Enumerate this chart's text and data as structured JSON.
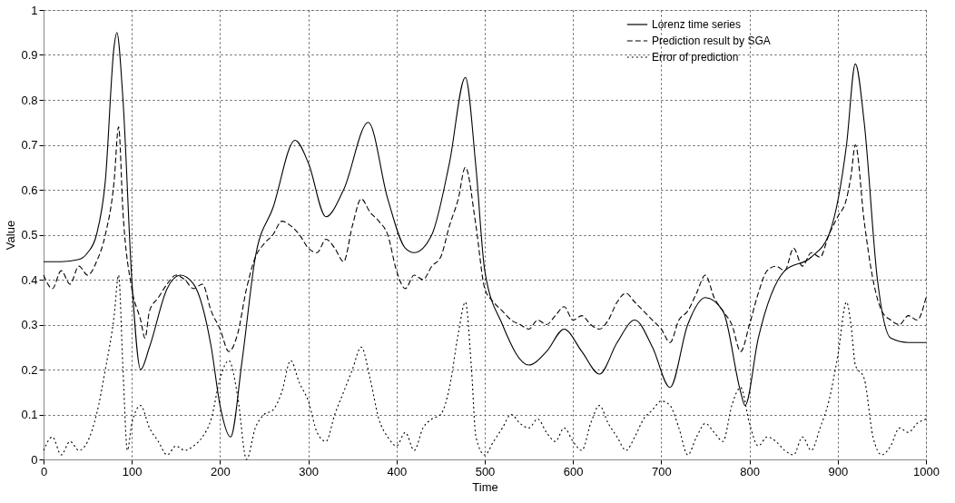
{
  "chart_data": {
    "type": "line",
    "xlabel": "Time",
    "ylabel": "Value",
    "xlim": [
      0,
      1000
    ],
    "xticks": [
      0,
      100,
      200,
      300,
      400,
      500,
      600,
      700,
      800,
      900,
      1000
    ],
    "ylim": [
      0,
      1
    ],
    "yticks": [
      0,
      0.1,
      0.2,
      0.3,
      0.4,
      0.5,
      0.6,
      0.7,
      0.8,
      0.9,
      1
    ],
    "grid": true,
    "legend": "top right",
    "series": [
      {
        "name": "Lorenz time series",
        "color": "#000000",
        "line_style": "solid",
        "x": [
          0,
          20,
          40,
          50,
          60,
          70,
          80,
          83,
          90,
          100,
          110,
          120,
          140,
          155,
          170,
          190,
          200,
          212,
          225,
          240,
          260,
          285,
          300,
          320,
          340,
          368,
          390,
          410,
          420,
          440,
          460,
          478,
          490,
          500,
          520,
          550,
          570,
          590,
          610,
          630,
          650,
          670,
          690,
          710,
          730,
          750,
          770,
          790,
          795,
          810,
          840,
          870,
          890,
          910,
          920,
          930,
          945,
          960,
          980,
          1000
        ],
        "values": [
          0.44,
          0.44,
          0.445,
          0.46,
          0.5,
          0.62,
          0.92,
          0.95,
          0.8,
          0.4,
          0.2,
          0.25,
          0.38,
          0.41,
          0.39,
          0.25,
          0.12,
          0.05,
          0.22,
          0.45,
          0.56,
          0.71,
          0.66,
          0.54,
          0.6,
          0.75,
          0.58,
          0.47,
          0.46,
          0.5,
          0.66,
          0.85,
          0.65,
          0.42,
          0.3,
          0.21,
          0.24,
          0.29,
          0.24,
          0.19,
          0.26,
          0.31,
          0.25,
          0.16,
          0.3,
          0.36,
          0.33,
          0.15,
          0.12,
          0.27,
          0.42,
          0.45,
          0.5,
          0.7,
          0.88,
          0.75,
          0.4,
          0.27,
          0.26,
          0.26
        ]
      },
      {
        "name": "Prediction result by SGA",
        "color": "#000000",
        "line_style": "dashed",
        "x": [
          0,
          10,
          20,
          30,
          40,
          50,
          60,
          70,
          80,
          85,
          90,
          100,
          110,
          115,
          120,
          130,
          140,
          150,
          160,
          170,
          180,
          190,
          200,
          210,
          220,
          230,
          240,
          250,
          260,
          270,
          280,
          290,
          300,
          310,
          320,
          330,
          340,
          350,
          360,
          370,
          380,
          390,
          400,
          410,
          420,
          430,
          440,
          450,
          460,
          470,
          478,
          490,
          500,
          510,
          520,
          530,
          540,
          550,
          560,
          570,
          580,
          590,
          600,
          610,
          620,
          630,
          640,
          650,
          660,
          670,
          680,
          690,
          700,
          710,
          720,
          730,
          740,
          750,
          760,
          770,
          780,
          790,
          800,
          810,
          820,
          830,
          840,
          850,
          860,
          870,
          880,
          890,
          900,
          910,
          915,
          920,
          930,
          940,
          950,
          960,
          970,
          980,
          990,
          1000
        ],
        "values": [
          0.41,
          0.38,
          0.42,
          0.39,
          0.43,
          0.41,
          0.44,
          0.5,
          0.62,
          0.74,
          0.55,
          0.38,
          0.31,
          0.27,
          0.33,
          0.36,
          0.39,
          0.41,
          0.4,
          0.38,
          0.39,
          0.33,
          0.29,
          0.24,
          0.28,
          0.38,
          0.45,
          0.48,
          0.5,
          0.53,
          0.52,
          0.5,
          0.47,
          0.46,
          0.49,
          0.47,
          0.44,
          0.52,
          0.58,
          0.55,
          0.53,
          0.5,
          0.42,
          0.38,
          0.41,
          0.4,
          0.43,
          0.45,
          0.52,
          0.58,
          0.65,
          0.52,
          0.38,
          0.35,
          0.33,
          0.31,
          0.3,
          0.29,
          0.31,
          0.3,
          0.32,
          0.34,
          0.31,
          0.32,
          0.3,
          0.29,
          0.31,
          0.35,
          0.37,
          0.35,
          0.33,
          0.31,
          0.29,
          0.26,
          0.31,
          0.33,
          0.37,
          0.41,
          0.36,
          0.33,
          0.3,
          0.24,
          0.3,
          0.37,
          0.42,
          0.43,
          0.42,
          0.47,
          0.43,
          0.46,
          0.45,
          0.5,
          0.54,
          0.58,
          0.63,
          0.7,
          0.53,
          0.4,
          0.33,
          0.31,
          0.3,
          0.32,
          0.31,
          0.36
        ]
      },
      {
        "name": "Error of prediction",
        "color": "#000000",
        "line_style": "dotted",
        "x": [
          0,
          10,
          20,
          30,
          40,
          50,
          60,
          70,
          80,
          85,
          90,
          95,
          100,
          110,
          120,
          130,
          140,
          150,
          160,
          170,
          180,
          190,
          200,
          210,
          220,
          230,
          240,
          250,
          260,
          270,
          280,
          290,
          300,
          310,
          320,
          330,
          340,
          350,
          360,
          370,
          380,
          390,
          400,
          410,
          420,
          430,
          440,
          450,
          460,
          470,
          478,
          485,
          490,
          500,
          510,
          520,
          530,
          540,
          550,
          560,
          570,
          580,
          590,
          600,
          610,
          620,
          630,
          640,
          650,
          660,
          670,
          680,
          690,
          700,
          710,
          720,
          730,
          740,
          750,
          760,
          770,
          780,
          790,
          800,
          810,
          820,
          830,
          840,
          850,
          860,
          870,
          880,
          890,
          900,
          910,
          915,
          920,
          930,
          940,
          950,
          960,
          970,
          980,
          990,
          1000
        ],
        "values": [
          0.02,
          0.05,
          0.01,
          0.04,
          0.02,
          0.04,
          0.1,
          0.2,
          0.32,
          0.41,
          0.2,
          0.02,
          0.08,
          0.12,
          0.07,
          0.04,
          0.01,
          0.03,
          0.02,
          0.03,
          0.05,
          0.09,
          0.18,
          0.22,
          0.14,
          0.0,
          0.07,
          0.1,
          0.11,
          0.15,
          0.22,
          0.17,
          0.13,
          0.06,
          0.04,
          0.1,
          0.15,
          0.2,
          0.25,
          0.18,
          0.09,
          0.05,
          0.03,
          0.06,
          0.02,
          0.07,
          0.09,
          0.1,
          0.16,
          0.28,
          0.35,
          0.2,
          0.05,
          0.01,
          0.04,
          0.07,
          0.1,
          0.08,
          0.07,
          0.09,
          0.06,
          0.04,
          0.07,
          0.04,
          0.02,
          0.08,
          0.12,
          0.08,
          0.05,
          0.02,
          0.05,
          0.09,
          0.11,
          0.13,
          0.12,
          0.07,
          0.01,
          0.05,
          0.08,
          0.06,
          0.04,
          0.12,
          0.16,
          0.08,
          0.03,
          0.05,
          0.04,
          0.02,
          0.01,
          0.05,
          0.02,
          0.07,
          0.13,
          0.23,
          0.35,
          0.3,
          0.21,
          0.18,
          0.05,
          0.01,
          0.03,
          0.07,
          0.06,
          0.08,
          0.09
        ]
      }
    ]
  }
}
